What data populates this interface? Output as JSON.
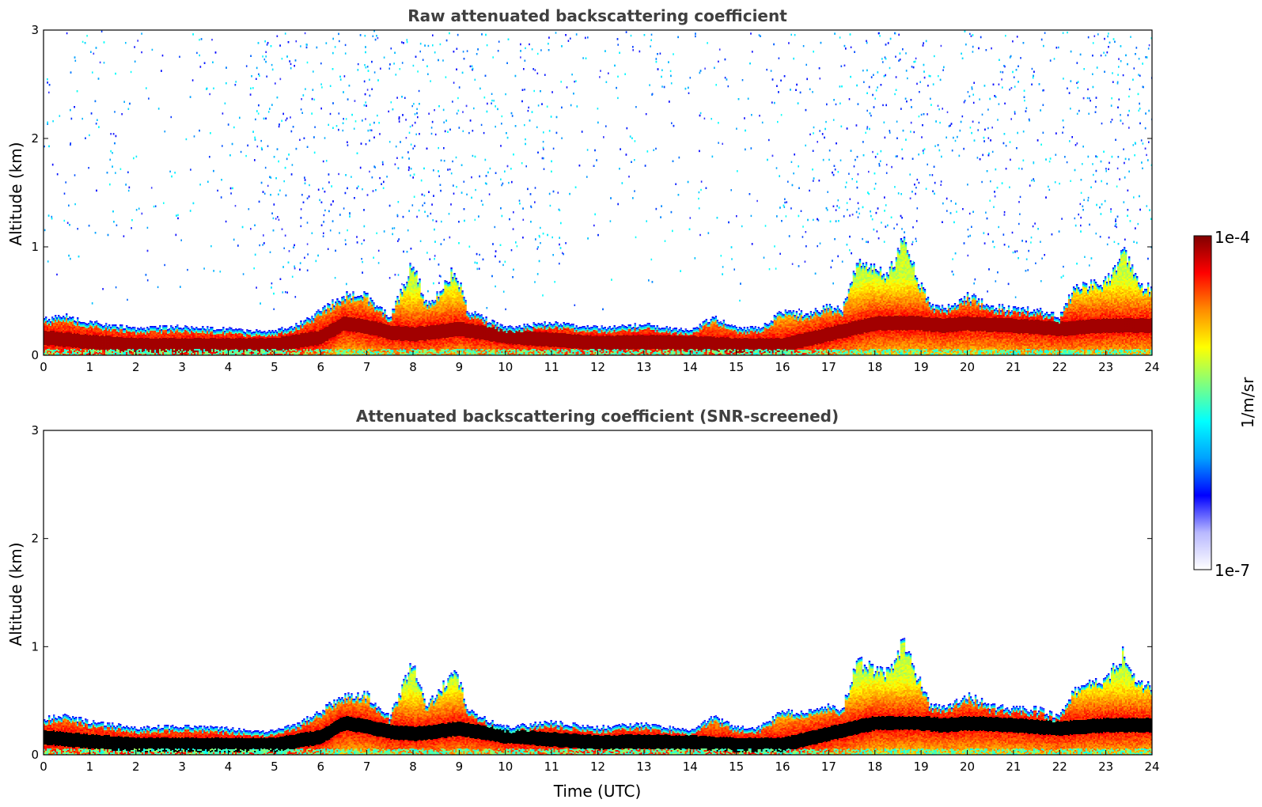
{
  "colormap": {
    "stops": [
      "#ffffff",
      "#b8b8ff",
      "#0000ff",
      "#00a0ff",
      "#00ffff",
      "#7fff7f",
      "#ffff00",
      "#ff8c00",
      "#ff0000",
      "#800000"
    ],
    "screened_peak_color": "#000000"
  },
  "colorbar": {
    "max_label": "1e-4",
    "min_label": "1e-7",
    "unit_label": "1/m/sr",
    "scale": "log"
  },
  "chart_data": [
    {
      "type": "heatmap",
      "title": "Raw attenuated backscattering coefficient",
      "xlabel": "",
      "ylabel": "Altitude (km)",
      "xlim": [
        0,
        24
      ],
      "ylim": [
        0,
        3
      ],
      "xticks": [
        "0",
        "1",
        "2",
        "3",
        "4",
        "5",
        "6",
        "7",
        "8",
        "9",
        "10",
        "11",
        "12",
        "13",
        "14",
        "15",
        "16",
        "17",
        "18",
        "19",
        "20",
        "21",
        "22",
        "23",
        "24"
      ],
      "yticks": [
        "0",
        "1",
        "2",
        "3"
      ],
      "screened": false,
      "boundary_layer_top_km": {
        "time_utc": [
          0,
          0.5,
          1,
          2,
          3,
          4,
          4.5,
          5,
          5.5,
          6,
          6.5,
          7,
          7.5,
          7.8,
          8,
          8.3,
          8.6,
          8.9,
          9.2,
          10,
          11,
          12,
          13,
          14,
          14.5,
          15,
          15.5,
          16,
          16.5,
          17,
          17.3,
          17.6,
          18,
          18.3,
          18.6,
          18.9,
          19.2,
          19.6,
          20,
          20.5,
          21,
          21.5,
          22,
          22.3,
          22.7,
          23,
          23.4,
          23.7,
          24
        ],
        "altitude": [
          0.33,
          0.36,
          0.3,
          0.25,
          0.26,
          0.24,
          0.22,
          0.22,
          0.28,
          0.4,
          0.55,
          0.55,
          0.35,
          0.65,
          0.85,
          0.45,
          0.6,
          0.8,
          0.4,
          0.25,
          0.3,
          0.25,
          0.28,
          0.22,
          0.35,
          0.25,
          0.25,
          0.4,
          0.38,
          0.45,
          0.42,
          0.85,
          0.8,
          0.75,
          1.05,
          0.75,
          0.45,
          0.45,
          0.55,
          0.45,
          0.42,
          0.42,
          0.35,
          0.6,
          0.65,
          0.68,
          0.95,
          0.65,
          0.62
        ]
      },
      "peak_layer_km": {
        "time_utc": [
          0,
          1,
          2,
          3,
          4,
          5,
          6,
          6.5,
          7,
          7.5,
          8,
          8.5,
          9,
          10,
          11,
          12,
          13,
          14,
          15,
          16,
          16.5,
          17,
          17.5,
          18,
          18.5,
          19,
          19.5,
          20,
          21,
          22,
          23,
          24
        ],
        "altitude": [
          0.17,
          0.13,
          0.1,
          0.1,
          0.1,
          0.1,
          0.17,
          0.3,
          0.27,
          0.22,
          0.2,
          0.22,
          0.25,
          0.18,
          0.15,
          0.12,
          0.13,
          0.12,
          0.1,
          0.1,
          0.15,
          0.2,
          0.25,
          0.3,
          0.3,
          0.3,
          0.28,
          0.3,
          0.28,
          0.25,
          0.28,
          0.28
        ]
      }
    },
    {
      "type": "heatmap",
      "title": "Attenuated backscattering coefficient (SNR-screened)",
      "xlabel": "Time (UTC)",
      "ylabel": "Altitude (km)",
      "xlim": [
        0,
        24
      ],
      "ylim": [
        0,
        3
      ],
      "xticks": [
        "0",
        "1",
        "2",
        "3",
        "4",
        "5",
        "6",
        "7",
        "8",
        "9",
        "10",
        "11",
        "12",
        "13",
        "14",
        "15",
        "16",
        "17",
        "18",
        "19",
        "20",
        "21",
        "22",
        "23",
        "24"
      ],
      "yticks": [
        "0",
        "1",
        "2",
        "3"
      ],
      "screened": true,
      "boundary_layer_top_km": {
        "time_utc": [
          0,
          0.5,
          1,
          2,
          3,
          4,
          4.5,
          5,
          5.5,
          6,
          6.5,
          7,
          7.5,
          7.8,
          8,
          8.3,
          8.6,
          8.9,
          9.2,
          10,
          11,
          12,
          13,
          14,
          14.5,
          15,
          15.5,
          16,
          16.5,
          17,
          17.3,
          17.6,
          18,
          18.3,
          18.6,
          18.9,
          19.2,
          19.6,
          20,
          20.5,
          21,
          21.5,
          22,
          22.3,
          22.7,
          23,
          23.4,
          23.7,
          24
        ],
        "altitude": [
          0.33,
          0.36,
          0.3,
          0.25,
          0.26,
          0.24,
          0.22,
          0.22,
          0.28,
          0.4,
          0.55,
          0.55,
          0.35,
          0.65,
          0.85,
          0.45,
          0.6,
          0.8,
          0.4,
          0.25,
          0.3,
          0.25,
          0.28,
          0.22,
          0.35,
          0.25,
          0.25,
          0.4,
          0.38,
          0.45,
          0.42,
          0.85,
          0.8,
          0.75,
          1.05,
          0.75,
          0.45,
          0.45,
          0.55,
          0.45,
          0.42,
          0.42,
          0.35,
          0.6,
          0.65,
          0.68,
          0.95,
          0.65,
          0.62
        ]
      },
      "peak_layer_km": {
        "time_utc": [
          0,
          1,
          2,
          3,
          4,
          5,
          6,
          6.5,
          7,
          7.5,
          8,
          8.5,
          9,
          10,
          11,
          12,
          13,
          14,
          15,
          16,
          16.5,
          17,
          17.5,
          18,
          18.5,
          19,
          19.5,
          20,
          21,
          22,
          23,
          24
        ],
        "altitude": [
          0.17,
          0.13,
          0.1,
          0.1,
          0.1,
          0.1,
          0.17,
          0.3,
          0.27,
          0.22,
          0.2,
          0.22,
          0.25,
          0.18,
          0.15,
          0.12,
          0.13,
          0.12,
          0.1,
          0.1,
          0.15,
          0.2,
          0.25,
          0.3,
          0.3,
          0.3,
          0.28,
          0.3,
          0.28,
          0.25,
          0.28,
          0.28
        ]
      }
    }
  ]
}
